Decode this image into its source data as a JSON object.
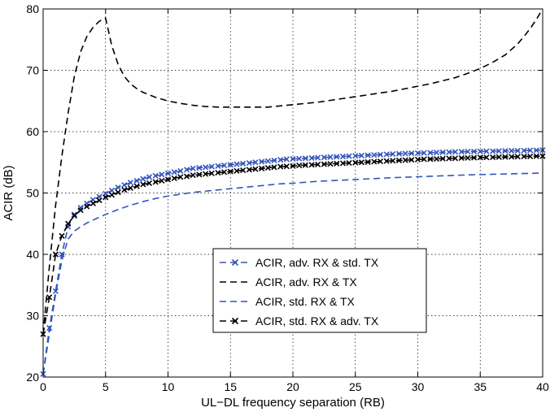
{
  "chart_data": {
    "type": "line",
    "xlabel": "UL−DL frequency separation (RB)",
    "ylabel": "ACIR (dB)",
    "xlim": [
      0,
      40
    ],
    "ylim": [
      20,
      80
    ],
    "xticks": [
      0,
      5,
      10,
      15,
      20,
      25,
      30,
      35,
      40
    ],
    "yticks": [
      20,
      30,
      40,
      50,
      60,
      70,
      80
    ],
    "grid": true,
    "legend_position": "center-right",
    "series": [
      {
        "name": "ACIR, adv. RX & std. TX",
        "color": "#3355bb",
        "line_style": "dashed",
        "marker": "x",
        "x": [
          0,
          0.5,
          1,
          1.5,
          2,
          2.5,
          3,
          3.5,
          4,
          4.5,
          5,
          5.5,
          6,
          6.5,
          7,
          7.5,
          8,
          8.5,
          9,
          9.5,
          10,
          10.5,
          11,
          11.5,
          12,
          12.5,
          13,
          13.5,
          14,
          14.5,
          15,
          15.5,
          16,
          16.5,
          17,
          17.5,
          18,
          18.5,
          19,
          19.5,
          20,
          20.5,
          21,
          21.5,
          22,
          22.5,
          23,
          23.5,
          24,
          24.5,
          25,
          25.5,
          26,
          26.5,
          27,
          27.5,
          28,
          28.5,
          29,
          29.5,
          30,
          30.5,
          31,
          31.5,
          32,
          32.5,
          33,
          33.5,
          34,
          34.5,
          35,
          35.5,
          36,
          36.5,
          37,
          37.5,
          38,
          38.5,
          39,
          39.5,
          40
        ],
        "y": [
          20.5,
          28,
          34,
          40,
          44.5,
          46.5,
          47.6,
          48.3,
          48.9,
          49.4,
          49.9,
          50.4,
          50.9,
          51.3,
          51.7,
          52,
          52.3,
          52.6,
          52.8,
          53,
          53.2,
          53.4,
          53.6,
          53.8,
          54,
          54.1,
          54.2,
          54.3,
          54.4,
          54.5,
          54.6,
          54.7,
          54.8,
          54.9,
          55,
          55.1,
          55.2,
          55.3,
          55.4,
          55.5,
          55.55,
          55.6,
          55.65,
          55.7,
          55.75,
          55.8,
          55.85,
          55.9,
          55.95,
          56,
          56.05,
          56.1,
          56.15,
          56.2,
          56.25,
          56.3,
          56.35,
          56.4,
          56.43,
          56.46,
          56.5,
          56.53,
          56.56,
          56.6,
          56.63,
          56.66,
          56.7,
          56.72,
          56.74,
          56.76,
          56.78,
          56.8,
          56.82,
          56.84,
          56.86,
          56.88,
          56.9,
          56.92,
          56.94,
          56.96,
          57
        ]
      },
      {
        "name": "ACIR, adv. RX & TX",
        "color": "#000000",
        "line_style": "dashed",
        "marker": "none",
        "x": [
          0,
          0.5,
          1,
          1.5,
          2,
          2.5,
          3,
          3.5,
          4,
          4.5,
          5,
          5.5,
          6,
          6.5,
          7,
          7.5,
          8,
          9,
          10,
          11,
          12,
          13,
          14,
          15,
          16,
          17,
          18,
          19,
          20,
          21,
          22,
          23,
          24,
          25,
          26,
          27,
          28,
          29,
          30,
          31,
          32,
          33,
          34,
          35,
          36,
          37,
          38,
          38.5,
          39,
          39.5,
          40
        ],
        "y": [
          27,
          38,
          48,
          56,
          63,
          69,
          73,
          75.5,
          77,
          78,
          78.5,
          74,
          71,
          69,
          67.8,
          67,
          66.4,
          65.6,
          65,
          64.6,
          64.3,
          64.1,
          64,
          64,
          64,
          64,
          64,
          64.2,
          64.4,
          64.6,
          64.8,
          65.1,
          65.4,
          65.7,
          66,
          66.3,
          66.6,
          67,
          67.4,
          67.8,
          68.3,
          68.8,
          69.5,
          70.3,
          71.3,
          72.5,
          74.3,
          75.5,
          76.8,
          78.3,
          80
        ]
      },
      {
        "name": "ACIR, std. RX & TX",
        "color": "#3355bb",
        "line_style": "dashed",
        "marker": "none",
        "x": [
          0,
          0.5,
          1,
          1.5,
          2,
          2.5,
          3,
          3.5,
          4,
          5,
          6,
          7,
          8,
          9,
          10,
          11,
          12,
          13,
          14,
          15,
          16,
          17,
          18,
          19,
          20,
          22,
          24,
          26,
          28,
          30,
          32,
          34,
          36,
          38,
          40
        ],
        "y": [
          20.5,
          27,
          33.5,
          39,
          42.5,
          43.8,
          44.5,
          45.1,
          45.6,
          46.5,
          47.3,
          48,
          48.6,
          49.1,
          49.5,
          49.8,
          50.1,
          50.3,
          50.5,
          50.7,
          50.9,
          51.1,
          51.3,
          51.5,
          51.6,
          51.9,
          52.1,
          52.3,
          52.5,
          52.65,
          52.8,
          52.95,
          53.05,
          53.15,
          53.25
        ]
      },
      {
        "name": "ACIR, std. RX & adv. TX",
        "color": "#000000",
        "line_style": "dashed",
        "marker": "x",
        "x": [
          0,
          0.5,
          1,
          1.5,
          2,
          2.5,
          3,
          3.5,
          4,
          4.5,
          5,
          5.5,
          6,
          6.5,
          7,
          7.5,
          8,
          8.5,
          9,
          9.5,
          10,
          10.5,
          11,
          11.5,
          12,
          12.5,
          13,
          13.5,
          14,
          14.5,
          15,
          15.5,
          16,
          16.5,
          17,
          17.5,
          18,
          18.5,
          19,
          19.5,
          20,
          20.5,
          21,
          21.5,
          22,
          22.5,
          23,
          23.5,
          24,
          24.5,
          25,
          25.5,
          26,
          26.5,
          27,
          27.5,
          28,
          28.5,
          29,
          29.5,
          30,
          30.5,
          31,
          31.5,
          32,
          32.5,
          33,
          33.5,
          34,
          34.5,
          35,
          35.5,
          36,
          36.5,
          37,
          37.5,
          38,
          38.5,
          39,
          39.5,
          40
        ],
        "y": [
          27,
          33,
          40,
          43,
          45,
          46.3,
          47.2,
          47.8,
          48.3,
          48.8,
          49.3,
          49.7,
          50.1,
          50.5,
          50.8,
          51.1,
          51.4,
          51.6,
          51.8,
          52,
          52.2,
          52.4,
          52.6,
          52.7,
          52.9,
          53,
          53.1,
          53.2,
          53.3,
          53.4,
          53.5,
          53.6,
          53.7,
          53.8,
          53.9,
          54,
          54.1,
          54.2,
          54.3,
          54.35,
          54.4,
          54.5,
          54.55,
          54.6,
          54.65,
          54.7,
          54.75,
          54.8,
          54.85,
          54.9,
          54.95,
          55,
          55.05,
          55.1,
          55.15,
          55.2,
          55.25,
          55.3,
          55.35,
          55.4,
          55.45,
          55.5,
          55.53,
          55.56,
          55.6,
          55.63,
          55.66,
          55.7,
          55.72,
          55.75,
          55.78,
          55.8,
          55.82,
          55.85,
          55.88,
          55.9,
          55.92,
          55.95,
          55.97,
          56,
          56
        ]
      }
    ]
  }
}
